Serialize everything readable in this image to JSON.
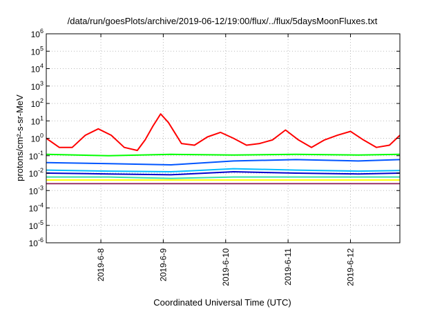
{
  "chart_data": {
    "type": "line",
    "title": "/data/run/goesPlots/archive/2019-06-12/19:00/flux/../flux/5daysMoonFluxes.txt",
    "xlabel": "Coordinated Universal Time (UTC)",
    "ylabel": "protons/cm²-s-sr-MeV",
    "yscale": "log",
    "ylim": [
      1e-06,
      1000000.0
    ],
    "y_ticks": [
      {
        "base": "10",
        "exp": "6"
      },
      {
        "base": "10",
        "exp": "5"
      },
      {
        "base": "10",
        "exp": "4"
      },
      {
        "base": "10",
        "exp": "3"
      },
      {
        "base": "10",
        "exp": "2"
      },
      {
        "base": "10",
        "exp": "1"
      },
      {
        "base": "10",
        "exp": "0"
      },
      {
        "base": "10",
        "exp": "-1"
      },
      {
        "base": "10",
        "exp": "-2"
      },
      {
        "base": "10",
        "exp": "-3"
      },
      {
        "base": "10",
        "exp": "-4"
      },
      {
        "base": "10",
        "exp": "-5"
      },
      {
        "base": "10",
        "exp": "-6"
      }
    ],
    "x_ticks": [
      "2019-6-8",
      "2019-6-9",
      "2019-6-10",
      "2019-6-11",
      "2019-6-12"
    ],
    "xlim": [
      "2019-06-07 03:00",
      "2019-06-12 19:00"
    ],
    "grid": true,
    "series": [
      {
        "color": "#ff0000",
        "x": [
          "2019-06-07 03:00",
          "2019-06-07 08:00",
          "2019-06-07 13:00",
          "2019-06-07 18:00",
          "2019-06-07 23:00",
          "2019-06-08 04:00",
          "2019-06-08 09:00",
          "2019-06-08 14:00",
          "2019-06-08 17:00",
          "2019-06-08 20:00",
          "2019-06-08 23:00",
          "2019-06-09 02:00",
          "2019-06-09 07:00",
          "2019-06-09 12:00",
          "2019-06-09 17:00",
          "2019-06-09 22:00",
          "2019-06-10 03:00",
          "2019-06-10 08:00",
          "2019-06-10 13:00",
          "2019-06-10 18:00",
          "2019-06-10 23:00",
          "2019-06-11 04:00",
          "2019-06-11 09:00",
          "2019-06-11 14:00",
          "2019-06-11 19:00",
          "2019-06-12 00:00",
          "2019-06-12 05:00",
          "2019-06-12 10:00",
          "2019-06-12 15:00",
          "2019-06-12 19:00"
        ],
        "y": [
          1.0,
          0.3,
          0.3,
          1.5,
          3.5,
          1.5,
          0.3,
          0.2,
          0.8,
          5,
          25,
          8,
          0.5,
          0.4,
          1.2,
          2.2,
          1.0,
          0.4,
          0.5,
          0.8,
          3.0,
          0.8,
          0.3,
          0.8,
          1.5,
          2.5,
          0.8,
          0.3,
          0.4,
          1.5
        ]
      },
      {
        "color": "#00ff00",
        "x": [
          "2019-06-07 03:00",
          "2019-06-08 03:00",
          "2019-06-09 03:00",
          "2019-06-10 03:00",
          "2019-06-11 03:00",
          "2019-06-12 03:00",
          "2019-06-12 19:00"
        ],
        "y": [
          0.12,
          0.1,
          0.12,
          0.11,
          0.12,
          0.11,
          0.12
        ]
      },
      {
        "color": "#0055ff",
        "x": [
          "2019-06-07 03:00",
          "2019-06-08 03:00",
          "2019-06-09 03:00",
          "2019-06-10 03:00",
          "2019-06-11 03:00",
          "2019-06-12 03:00",
          "2019-06-12 19:00"
        ],
        "y": [
          0.04,
          0.035,
          0.03,
          0.05,
          0.06,
          0.05,
          0.06
        ]
      },
      {
        "color": "#00bbff",
        "x": [
          "2019-06-07 03:00",
          "2019-06-08 03:00",
          "2019-06-09 03:00",
          "2019-06-10 03:00",
          "2019-06-11 03:00",
          "2019-06-12 03:00",
          "2019-06-12 19:00"
        ],
        "y": [
          0.015,
          0.013,
          0.012,
          0.018,
          0.015,
          0.013,
          0.014
        ]
      },
      {
        "color": "#0000cc",
        "x": [
          "2019-06-07 03:00",
          "2019-06-08 03:00",
          "2019-06-09 03:00",
          "2019-06-10 03:00",
          "2019-06-11 03:00",
          "2019-06-12 03:00",
          "2019-06-12 19:00"
        ],
        "y": [
          0.01,
          0.009,
          0.008,
          0.012,
          0.01,
          0.009,
          0.01
        ]
      },
      {
        "color": "#33ddaa",
        "x": [
          "2019-06-07 03:00",
          "2019-06-08 03:00",
          "2019-06-09 03:00",
          "2019-06-10 03:00",
          "2019-06-11 03:00",
          "2019-06-12 03:00",
          "2019-06-12 19:00"
        ],
        "y": [
          0.006,
          0.006,
          0.005,
          0.006,
          0.006,
          0.006,
          0.006
        ]
      },
      {
        "color": "#ffff00",
        "x": [
          "2019-06-07 03:00",
          "2019-06-08 03:00",
          "2019-06-09 03:00",
          "2019-06-10 03:00",
          "2019-06-11 03:00",
          "2019-06-12 03:00",
          "2019-06-12 19:00"
        ],
        "y": [
          0.004,
          0.004,
          0.004,
          0.004,
          0.004,
          0.004,
          0.004
        ]
      },
      {
        "color": "#993366",
        "x": [
          "2019-06-07 03:00",
          "2019-06-08 03:00",
          "2019-06-09 03:00",
          "2019-06-10 03:00",
          "2019-06-11 03:00",
          "2019-06-12 03:00",
          "2019-06-12 19:00"
        ],
        "y": [
          0.0025,
          0.0025,
          0.0025,
          0.0025,
          0.0025,
          0.0025,
          0.0025
        ]
      }
    ]
  }
}
